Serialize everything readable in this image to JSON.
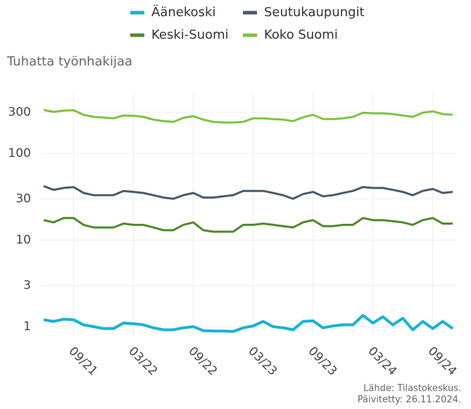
{
  "chart_data": {
    "type": "line",
    "ylabel": "Tuhatta työnhakijaa",
    "source": [
      "Lähde: Tilastokeskus.",
      "Päivitetty: 26.11.2024."
    ],
    "x": [
      "06/21",
      "07/21",
      "08/21",
      "09/21",
      "10/21",
      "11/21",
      "12/21",
      "01/22",
      "02/22",
      "03/22",
      "04/22",
      "05/22",
      "06/22",
      "07/22",
      "08/22",
      "09/22",
      "10/22",
      "11/22",
      "12/22",
      "01/23",
      "02/23",
      "03/23",
      "04/23",
      "05/23",
      "06/23",
      "07/23",
      "08/23",
      "09/23",
      "10/23",
      "11/23",
      "12/23",
      "01/24",
      "02/24",
      "03/24",
      "04/24",
      "05/24",
      "06/24",
      "07/24",
      "08/24",
      "09/24",
      "10/24",
      "11/24"
    ],
    "xticks": [
      "09/21",
      "03/22",
      "09/22",
      "03/23",
      "09/23",
      "03/24",
      "09/24"
    ],
    "yscale": "log",
    "ylim": [
      0.77,
      520
    ],
    "yticks": [
      1,
      3,
      10,
      30,
      100,
      300
    ],
    "grid": true,
    "legend": "top",
    "series": [
      {
        "name": "Äänekoski",
        "color": "#17b2d6",
        "values": [
          1.2,
          1.15,
          1.22,
          1.2,
          1.05,
          1.0,
          0.95,
          0.95,
          1.1,
          1.08,
          1.05,
          0.97,
          0.92,
          0.92,
          0.97,
          1.0,
          0.9,
          0.89,
          0.89,
          0.88,
          0.97,
          1.02,
          1.15,
          1.0,
          0.97,
          0.92,
          1.15,
          1.17,
          0.97,
          1.02,
          1.05,
          1.05,
          1.35,
          1.1,
          1.3,
          1.05,
          1.25,
          0.92,
          1.15,
          0.95,
          1.15,
          0.95
        ]
      },
      {
        "name": "Seutukaupungit",
        "color": "#4a5a6e",
        "values": [
          42,
          38,
          40,
          41,
          35,
          33,
          33,
          33,
          37,
          36,
          35,
          33,
          31,
          30,
          33,
          35,
          31,
          31,
          32,
          33,
          37,
          37,
          37,
          35,
          33,
          30,
          34,
          36,
          32,
          33,
          35,
          37,
          41,
          40,
          40,
          38,
          36,
          33,
          37,
          39,
          35,
          36
        ]
      },
      {
        "name": "Keski-Suomi",
        "color": "#4e8a2a",
        "values": [
          17,
          16,
          18,
          18,
          15,
          14,
          14,
          14,
          15.5,
          15,
          15,
          14,
          13,
          13,
          15,
          16,
          13,
          12.5,
          12.5,
          12.5,
          15,
          15,
          15.5,
          15,
          14.5,
          14,
          16,
          17,
          14.5,
          14.5,
          15,
          15,
          18,
          17,
          17,
          16.5,
          16,
          15,
          17,
          18,
          15.5,
          15.5
        ]
      },
      {
        "name": "Koko Suomi",
        "color": "#7cc440",
        "values": [
          319,
          302,
          313,
          316,
          280,
          265,
          260,
          255,
          275,
          273,
          265,
          246,
          237,
          232,
          258,
          270,
          246,
          232,
          228,
          228,
          232,
          255,
          255,
          250,
          246,
          237,
          262,
          280,
          250,
          250,
          255,
          265,
          296,
          291,
          291,
          285,
          275,
          265,
          296,
          307,
          285,
          280
        ]
      }
    ]
  }
}
